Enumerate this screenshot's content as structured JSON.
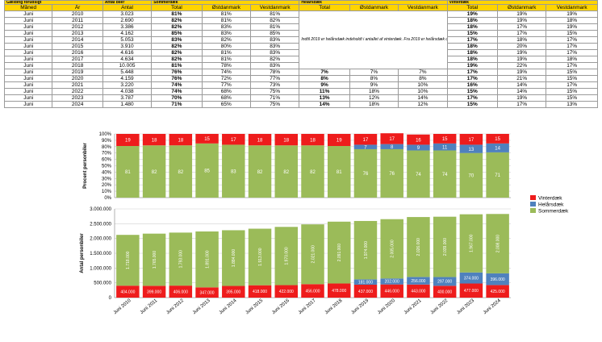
{
  "table": {
    "group_headers": [
      "Gælding forudsigt",
      "Antal biler",
      "Sommerdæk",
      "",
      "Helårsdæk",
      "",
      "",
      "Vinterdæk",
      "",
      ""
    ],
    "columns": [
      "Måned",
      "År",
      "Antal",
      "Total",
      "Østdanmark",
      "Vestdanmark",
      "Total",
      "Østdanmark",
      "Vestdanmark",
      "Total",
      "Østdanmark",
      "Vestdanmark"
    ],
    "note": "Indtil 2019 er helårsdæk indeholdt i antallet af vinterdæk. Fra 2019 er helårsdæk optalt separat.",
    "rows": [
      [
        "Juni",
        "2010",
        "3.023",
        "81%",
        "81%",
        "81%",
        "",
        "",
        "",
        "19%",
        "19%",
        "19%"
      ],
      [
        "Juni",
        "2011",
        "2.690",
        "82%",
        "81%",
        "82%",
        "",
        "",
        "",
        "18%",
        "19%",
        "18%"
      ],
      [
        "Juni",
        "2012",
        "3.386",
        "82%",
        "83%",
        "81%",
        "",
        "",
        "",
        "18%",
        "17%",
        "19%"
      ],
      [
        "Juni",
        "2013",
        "4.162",
        "85%",
        "83%",
        "85%",
        "",
        "",
        "",
        "15%",
        "17%",
        "15%"
      ],
      [
        "Juni",
        "2014",
        "5.053",
        "83%",
        "82%",
        "83%",
        "",
        "",
        "",
        "17%",
        "18%",
        "17%"
      ],
      [
        "Juni",
        "2015",
        "3.910",
        "82%",
        "80%",
        "83%",
        "",
        "",
        "",
        "18%",
        "20%",
        "17%"
      ],
      [
        "Juni",
        "2016",
        "4.616",
        "82%",
        "81%",
        "83%",
        "",
        "",
        "",
        "18%",
        "19%",
        "17%"
      ],
      [
        "Juni",
        "2017",
        "4.634",
        "82%",
        "81%",
        "82%",
        "",
        "",
        "",
        "18%",
        "19%",
        "18%"
      ],
      [
        "Juni",
        "2018",
        "10.005",
        "81%",
        "78%",
        "83%",
        "",
        "",
        "",
        "19%",
        "22%",
        "17%"
      ],
      [
        "Juni",
        "2019",
        "5.448",
        "76%",
        "74%",
        "78%",
        "7%",
        "7%",
        "7%",
        "17%",
        "19%",
        "15%"
      ],
      [
        "Juni",
        "2020",
        "4.159",
        "76%",
        "72%",
        "77%",
        "8%",
        "8%",
        "8%",
        "17%",
        "21%",
        "15%"
      ],
      [
        "Juni",
        "2021",
        "3.220",
        "74%",
        "77%",
        "73%",
        "9%",
        "9%",
        "10%",
        "16%",
        "14%",
        "17%"
      ],
      [
        "Juni",
        "2022",
        "4.038",
        "74%",
        "68%",
        "75%",
        "11%",
        "18%",
        "10%",
        "15%",
        "14%",
        "15%"
      ],
      [
        "Juni",
        "2023",
        "3.787",
        "70%",
        "68%",
        "71%",
        "13%",
        "12%",
        "14%",
        "17%",
        "19%",
        "15%"
      ],
      [
        "Juni",
        "2024",
        "1.480",
        "71%",
        "65%",
        "75%",
        "14%",
        "18%",
        "12%",
        "15%",
        "17%",
        "13%"
      ]
    ]
  },
  "legend": [
    {
      "label": "Vinterdæk",
      "color": "#ee1c1c"
    },
    {
      "label": "Helårsdæk",
      "color": "#4f81bd"
    },
    {
      "label": "Sommerdæk",
      "color": "#9bbb59"
    }
  ],
  "chart_data": [
    {
      "type": "bar",
      "stacked": true,
      "ylabel": "Procent personbiler",
      "ylim": [
        0,
        100
      ],
      "yticks": [
        "0%",
        "10%",
        "20%",
        "30%",
        "40%",
        "50%",
        "60%",
        "70%",
        "80%",
        "90%",
        "100%"
      ],
      "categories": [
        "Juni 2010",
        "Juni 2011",
        "Juni 2012",
        "Juni 2013",
        "Juni 2014",
        "Juni 2015",
        "Juni 2016",
        "Juni 2017",
        "Juni 2018",
        "Juni 2019",
        "Juni 2020",
        "Juni 2021",
        "Juni 2022",
        "Juni 2023",
        "Juni 2024"
      ],
      "series": [
        {
          "name": "Sommerdæk",
          "color": "#9bbb59",
          "values": [
            81,
            82,
            82,
            85,
            83,
            82,
            82,
            82,
            81,
            76,
            76,
            74,
            74,
            70,
            71
          ]
        },
        {
          "name": "Helårsdæk",
          "color": "#4f81bd",
          "values": [
            0,
            0,
            0,
            0,
            0,
            0,
            0,
            0,
            0,
            7,
            8,
            9,
            11,
            13,
            14
          ]
        },
        {
          "name": "Vinterdæk",
          "color": "#ee1c1c",
          "values": [
            19,
            18,
            18,
            15,
            17,
            18,
            18,
            18,
            19,
            17,
            17,
            16,
            15,
            17,
            15
          ]
        }
      ],
      "grid": true
    },
    {
      "type": "bar",
      "stacked": true,
      "ylabel": "Antal personbiler",
      "ylim": [
        0,
        3000000
      ],
      "yticks": [
        "0",
        "500.000",
        "1.000.000",
        "1.500.000",
        "2.000.000",
        "2.500.000",
        "3.000.000"
      ],
      "categories": [
        "Juni 2010",
        "Juni 2011",
        "Juni 2012",
        "Juni 2013",
        "Juni 2014",
        "Juni 2015",
        "Juni 2016",
        "Juni 2017",
        "Juni 2018",
        "Juni 2019",
        "Juni 2020",
        "Juni 2021",
        "Juni 2022",
        "Juni 2023",
        "Juni 2024"
      ],
      "series": [
        {
          "name": "Vinterdæk",
          "color": "#ee1c1c",
          "values": [
            404000,
            399000,
            406000,
            347000,
            395000,
            418000,
            422000,
            456000,
            478000,
            437000,
            446000,
            443000,
            400000,
            477000,
            425000
          ],
          "labels": [
            "404.000",
            "399.000",
            "406.000",
            "347.000",
            "395.000",
            "418.000",
            "422.000",
            "456.000",
            "478.000",
            "437.000",
            "446.000",
            "443.000",
            "400.000",
            "477.000",
            "425.000"
          ]
        },
        {
          "name": "Helårsdæk",
          "color": "#4f81bd",
          "values": [
            0,
            0,
            0,
            0,
            0,
            0,
            0,
            0,
            0,
            181000,
            202000,
            256000,
            297000,
            374000,
            396000
          ],
          "labels": [
            "",
            "",
            "",
            "",
            "",
            "",
            "",
            "",
            "",
            "181.000",
            "202.000",
            "256.000",
            "297.000",
            "374.000",
            "396.000"
          ]
        },
        {
          "name": "Sommerdæk",
          "color": "#9bbb59",
          "values": [
            1718000,
            1765000,
            1793000,
            1891000,
            1884000,
            1913000,
            1970000,
            2021000,
            2091000,
            1974000,
            2005000,
            2026000,
            2039000,
            1967000,
            2008000
          ],
          "labels": [
            "1.718.000",
            "1.765.000",
            "1.793.000",
            "1.891.000",
            "1.884.000",
            "1.913.000",
            "1.970.000",
            "2.021.000",
            "2.091.000",
            "1.974.000",
            "2.005.000",
            "2.026.000",
            "2.039.000",
            "1.967.000",
            "2.008.000"
          ]
        }
      ],
      "grid": true
    }
  ]
}
